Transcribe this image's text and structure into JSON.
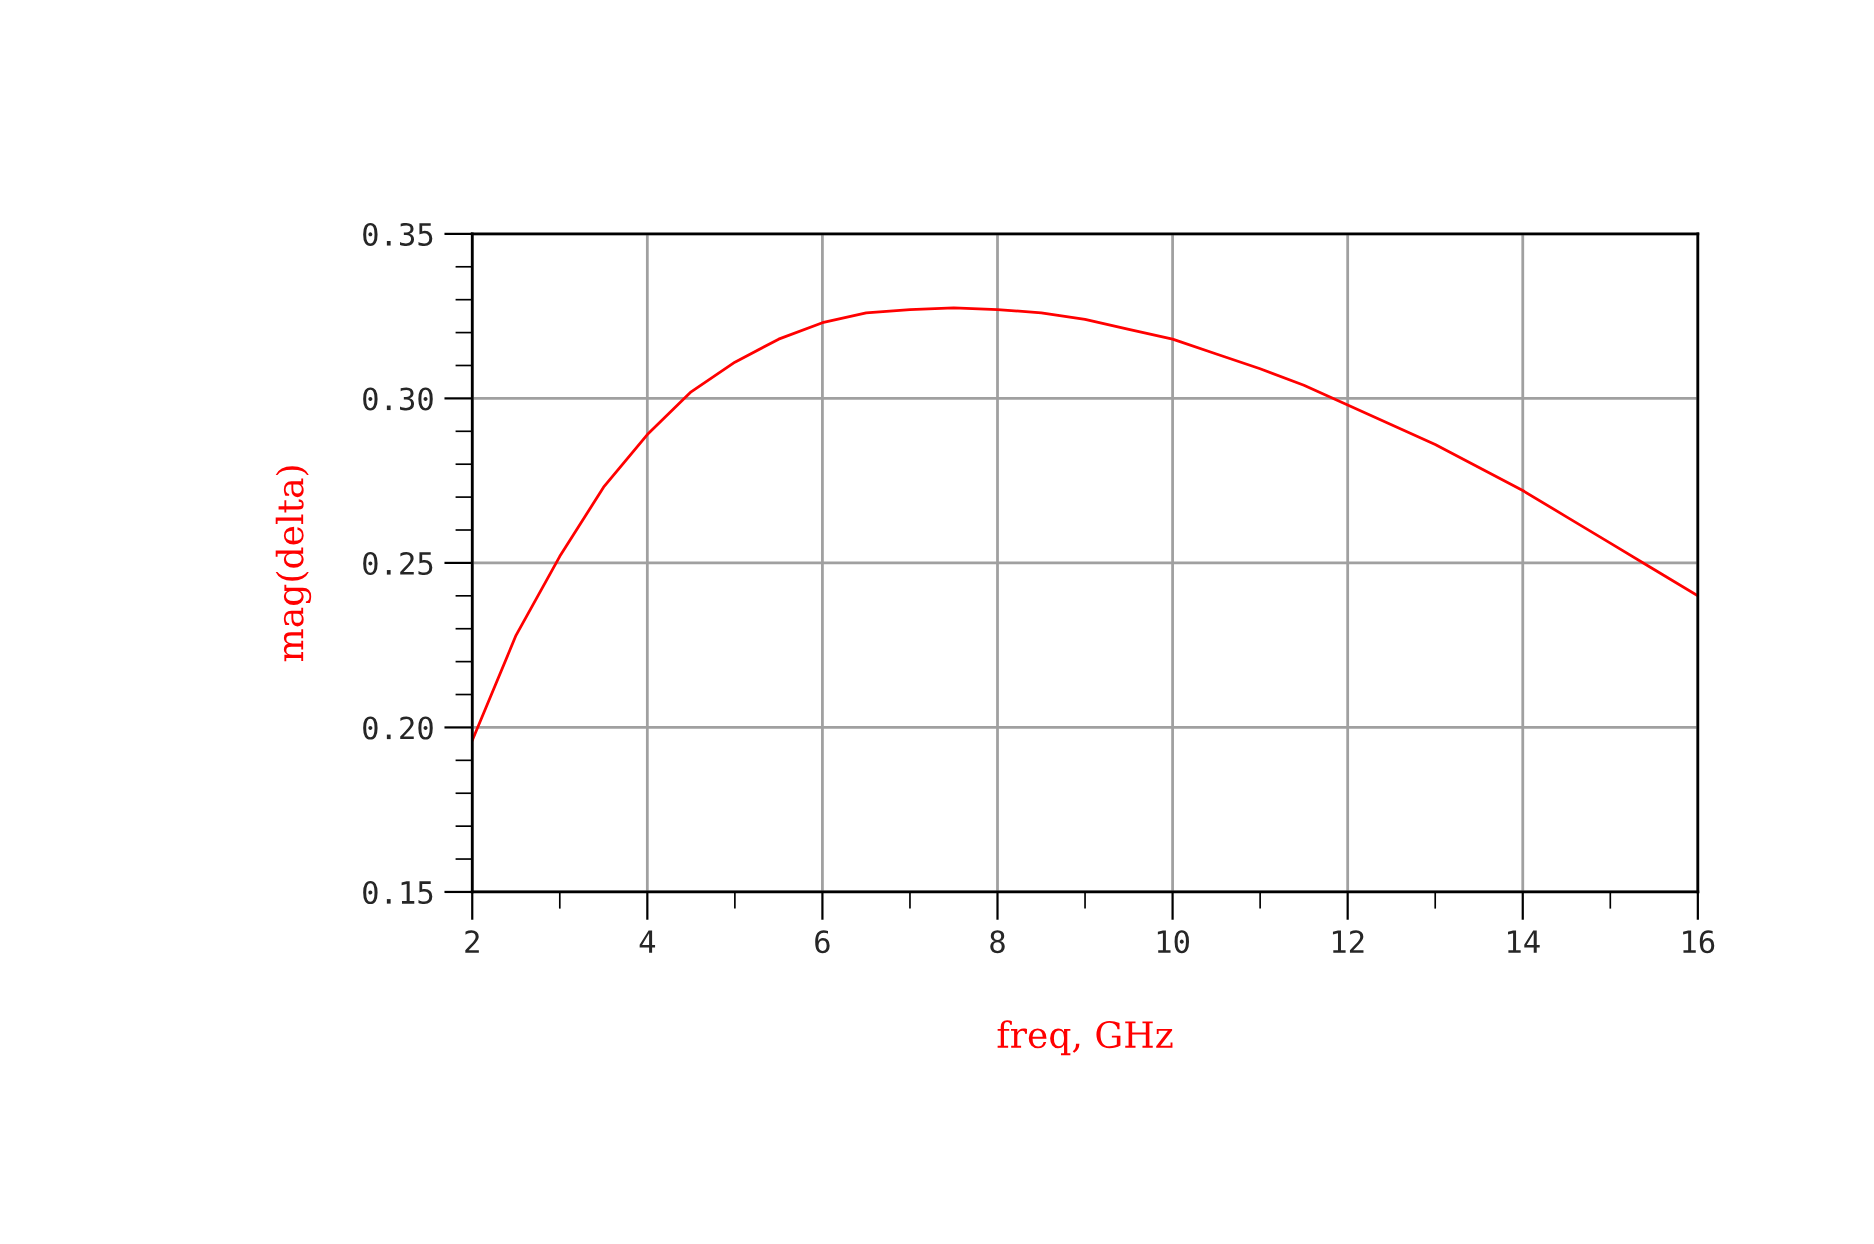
{
  "chart_data": {
    "type": "line",
    "xlabel": "freq, GHz",
    "ylabel": "mag(delta)",
    "x": [
      2,
      2.5,
      3,
      3.5,
      4,
      4.5,
      5,
      5.5,
      6,
      6.5,
      7,
      7.5,
      8,
      8.5,
      9,
      9.5,
      10,
      10.5,
      11,
      11.5,
      12,
      12.5,
      13,
      13.5,
      14,
      14.5,
      15,
      15.5,
      16
    ],
    "series": [
      {
        "color": "#ff0000",
        "values": [
          0.196,
          0.228,
          0.252,
          0.273,
          0.289,
          0.302,
          0.311,
          0.318,
          0.323,
          0.326,
          0.327,
          0.3275,
          0.327,
          0.326,
          0.324,
          0.321,
          0.318,
          0.3135,
          0.309,
          0.304,
          0.298,
          0.292,
          0.286,
          0.279,
          0.272,
          0.264,
          0.256,
          0.248,
          0.24
        ]
      }
    ],
    "xlim": [
      2,
      16
    ],
    "ylim": [
      0.15,
      0.35
    ],
    "xticks": [
      2,
      4,
      6,
      8,
      10,
      12,
      14,
      16
    ],
    "yticks": [
      0.15,
      {
        "value": 0.2,
        "label": "0.20"
      },
      0.25,
      {
        "value": 0.3,
        "label": "0.30"
      },
      0.35
    ],
    "grid": true,
    "line_style": "solid"
  }
}
